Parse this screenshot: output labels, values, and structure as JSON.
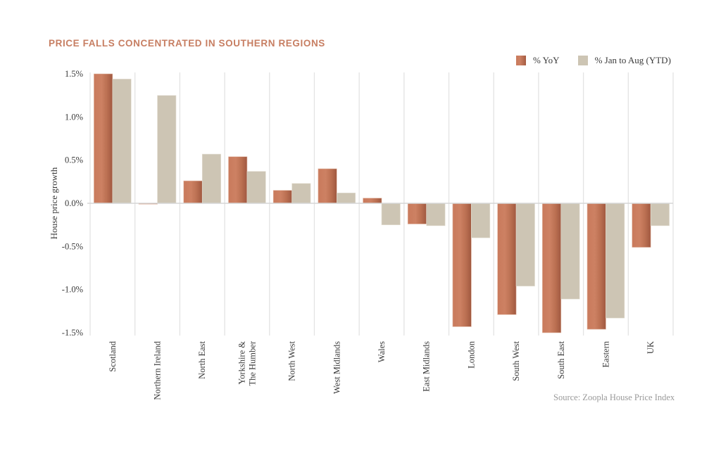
{
  "chart_data": {
    "type": "bar",
    "title": "PRICE FALLS CONCENTRATED IN SOUTHERN REGIONS",
    "xlabel": "",
    "ylabel": "House price growth",
    "ylim": [
      -1.5,
      1.5
    ],
    "yticks": [
      1.5,
      1.0,
      0.5,
      0.0,
      -0.5,
      -1.0,
      -1.5
    ],
    "ytick_labels": [
      "1.5%",
      "1.0%",
      "0.5%",
      "0.0%",
      "-0.5%",
      "-1.0%",
      "-1.5%"
    ],
    "grid": "vertical separators between categories",
    "legend_position": "top-right",
    "categories": [
      "Scotland",
      "Northern Ireland",
      "North East",
      "Yorkshire & The Humber",
      "North West",
      "West Midlands",
      "Wales",
      "East Midlands",
      "London",
      "South West",
      "South East",
      "Eastern",
      "UK"
    ],
    "category_label_lines": [
      [
        "Scotland"
      ],
      [
        "Northern Ireland"
      ],
      [
        "North East"
      ],
      [
        "Yorkshire &",
        "The Humber"
      ],
      [
        "North West"
      ],
      [
        "West Midlands"
      ],
      [
        "Wales"
      ],
      [
        "East Midlands"
      ],
      [
        "London"
      ],
      [
        "South West"
      ],
      [
        "South East"
      ],
      [
        "Eastern"
      ],
      [
        "UK"
      ]
    ],
    "series": [
      {
        "name": "% YoY",
        "color": "#c2704f",
        "values": [
          1.5,
          -0.01,
          0.26,
          0.54,
          0.15,
          0.4,
          0.06,
          -0.24,
          -1.43,
          -1.29,
          -1.5,
          -1.46,
          -0.51
        ]
      },
      {
        "name": "% Jan to Aug (YTD)",
        "color": "#cdc5b4",
        "values": [
          1.44,
          1.25,
          0.57,
          0.37,
          0.23,
          0.12,
          -0.25,
          -0.26,
          -0.4,
          -0.96,
          -1.11,
          -1.33,
          -0.26
        ]
      }
    ],
    "source": "Source: Zoopla House Price Index"
  },
  "colors": {
    "title": "#c77e62",
    "yoy_light": "#cd8163",
    "yoy_dark": "#a55c42",
    "ytd": "#cdc5b4",
    "gridline": "#e3e3e3",
    "text": "#3a3a3a",
    "source_text": "#9a9a9a"
  }
}
